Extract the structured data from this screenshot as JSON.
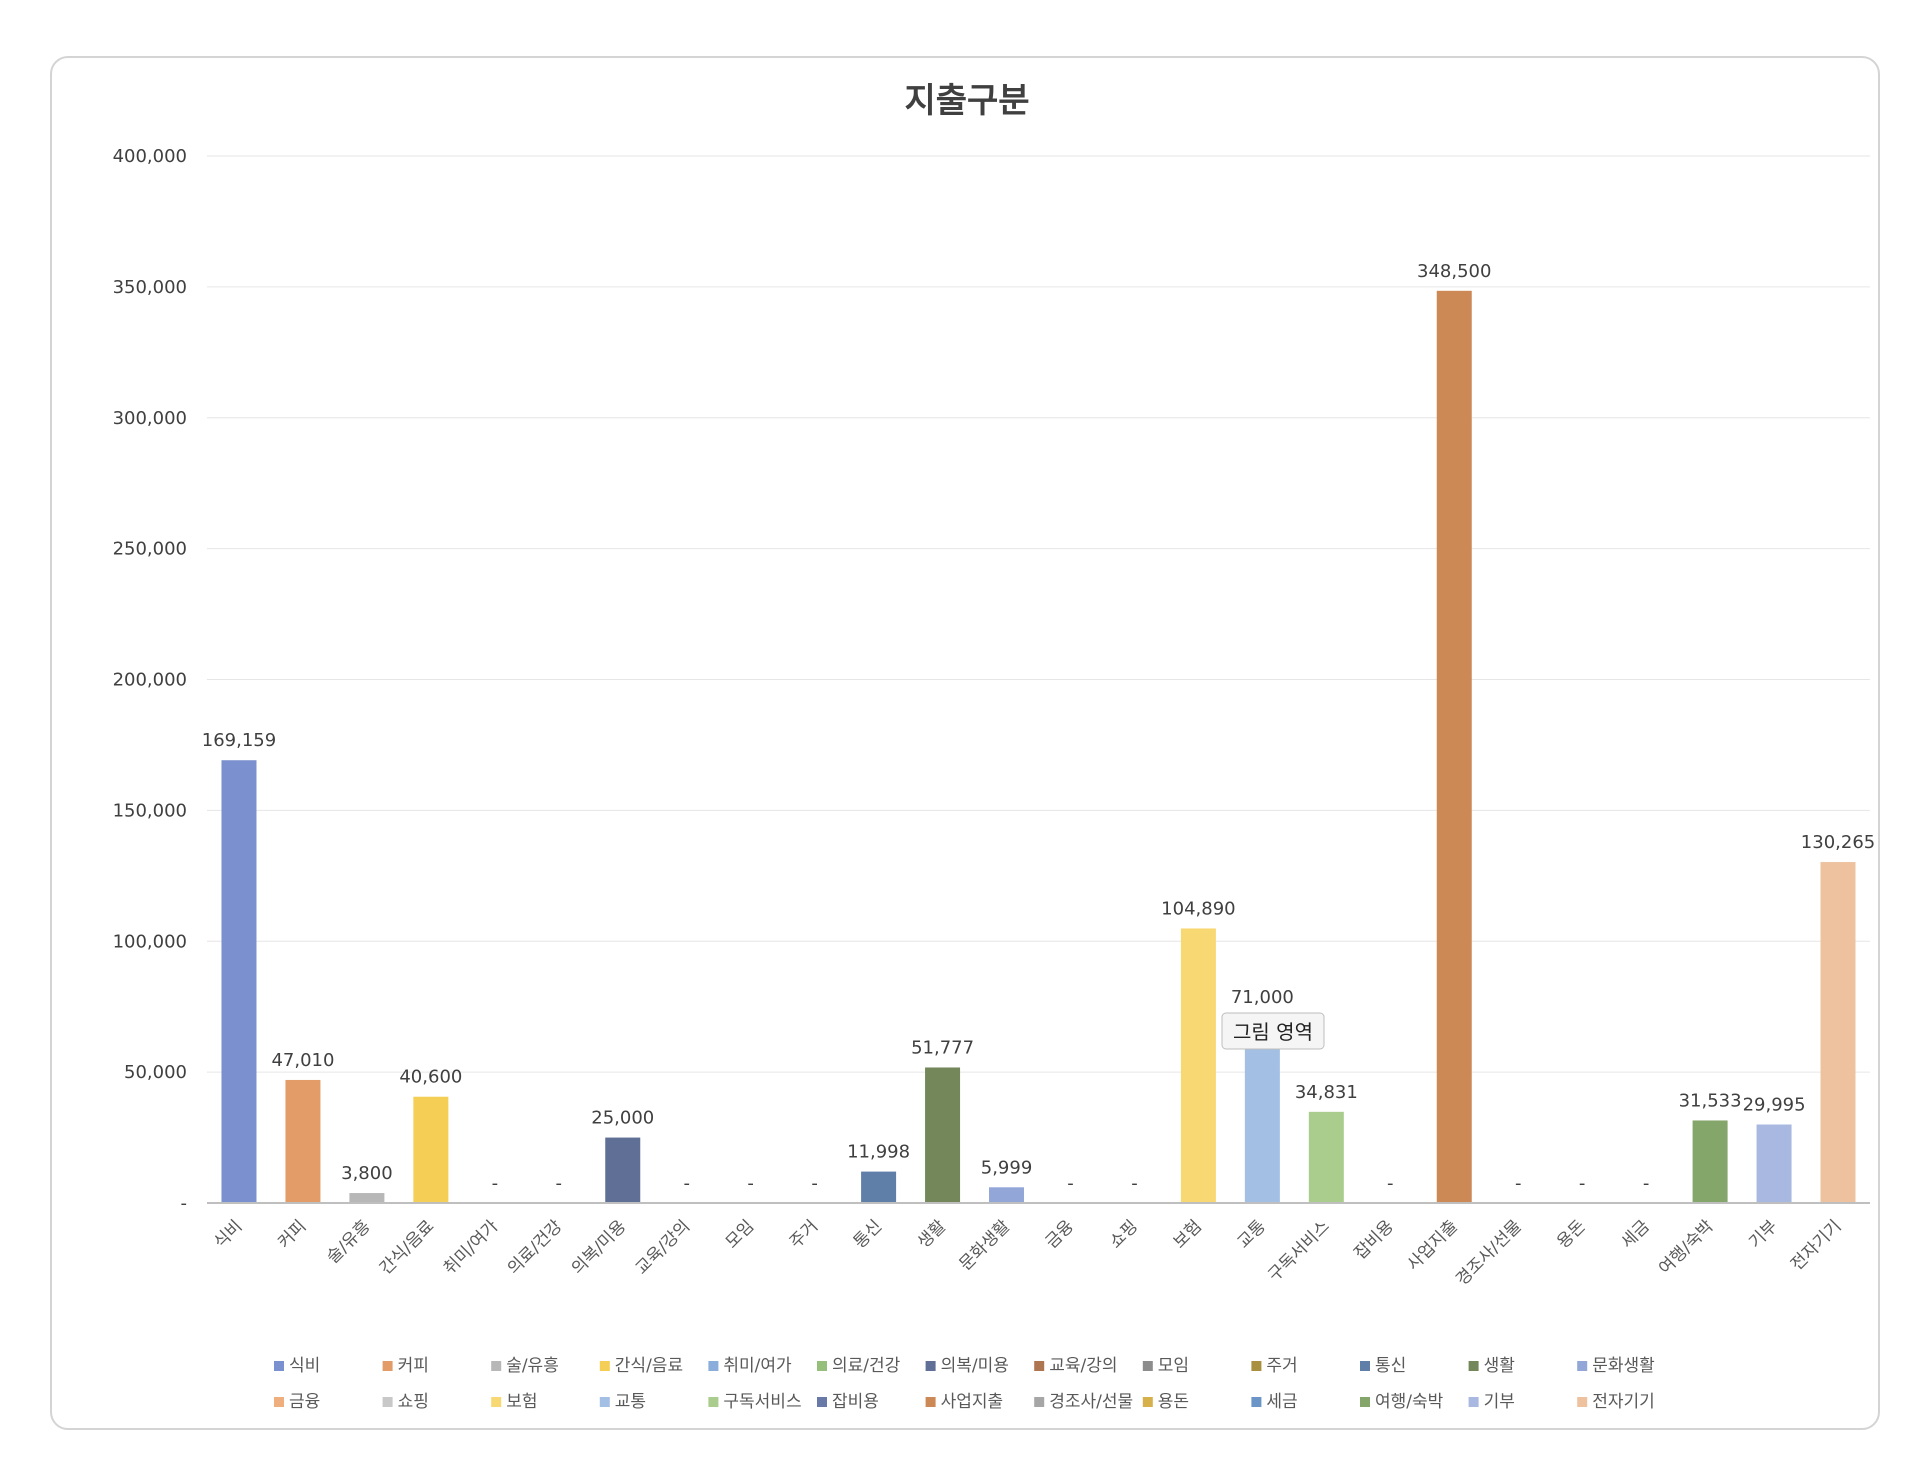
{
  "chart_data": {
    "type": "bar",
    "title": "지출구분",
    "ylim": [
      0,
      400000
    ],
    "yticks": [
      0,
      50000,
      100000,
      150000,
      200000,
      250000,
      300000,
      350000,
      400000
    ],
    "ytick_labels": [
      "-",
      "50,000",
      "100,000",
      "150,000",
      "200,000",
      "250,000",
      "300,000",
      "350,000",
      "400,000"
    ],
    "grid": true,
    "legend": "bottom",
    "categories": [
      "식비",
      "커피",
      "술/유흥",
      "간식/음료",
      "취미/여가",
      "의료/건강",
      "의복/미용",
      "교육/강의",
      "모임",
      "주거",
      "통신",
      "생활",
      "문화생활",
      "금융",
      "쇼핑",
      "보험",
      "교통",
      "구독서비스",
      "잡비용",
      "사업지출",
      "경조사/선물",
      "용돈",
      "세금",
      "여행/숙박",
      "기부",
      "전자기기"
    ],
    "values": [
      169159,
      47010,
      3800,
      40600,
      0,
      0,
      25000,
      0,
      0,
      0,
      11998,
      51777,
      5999,
      0,
      0,
      104890,
      71000,
      34831,
      0,
      348500,
      0,
      0,
      0,
      31533,
      29995,
      130265
    ],
    "data_labels": [
      "169,159",
      "47,010",
      "3,800",
      "40,600",
      "-",
      "-",
      "25,000",
      "-",
      "-",
      "-",
      "11,998",
      "51,777",
      "5,999",
      "-",
      "-",
      "104,890",
      "71,000",
      "34,831",
      "-",
      "348,500",
      "-",
      "-",
      "-",
      "31,533",
      "29,995",
      "130,265"
    ],
    "colors": [
      "#7a90cf",
      "#e39c67",
      "#b7b7b7",
      "#f5cf55",
      "#8aaddc",
      "#95bf7a",
      "#5f6f96",
      "#ad7650",
      "#8c8c8c",
      "#a8903f",
      "#5f7ea8",
      "#73875a",
      "#93a6d8",
      "#efae7e",
      "#c8c8c8",
      "#f8d872",
      "#a4bfe4",
      "#aacd8e",
      "#6a7aa8",
      "#cd8955",
      "#a6a6a6",
      "#d6b04a",
      "#6b94c7",
      "#84a66a",
      "#a9b8e0",
      "#efc29f"
    ]
  },
  "tooltip": {
    "text": "그림 영역"
  }
}
